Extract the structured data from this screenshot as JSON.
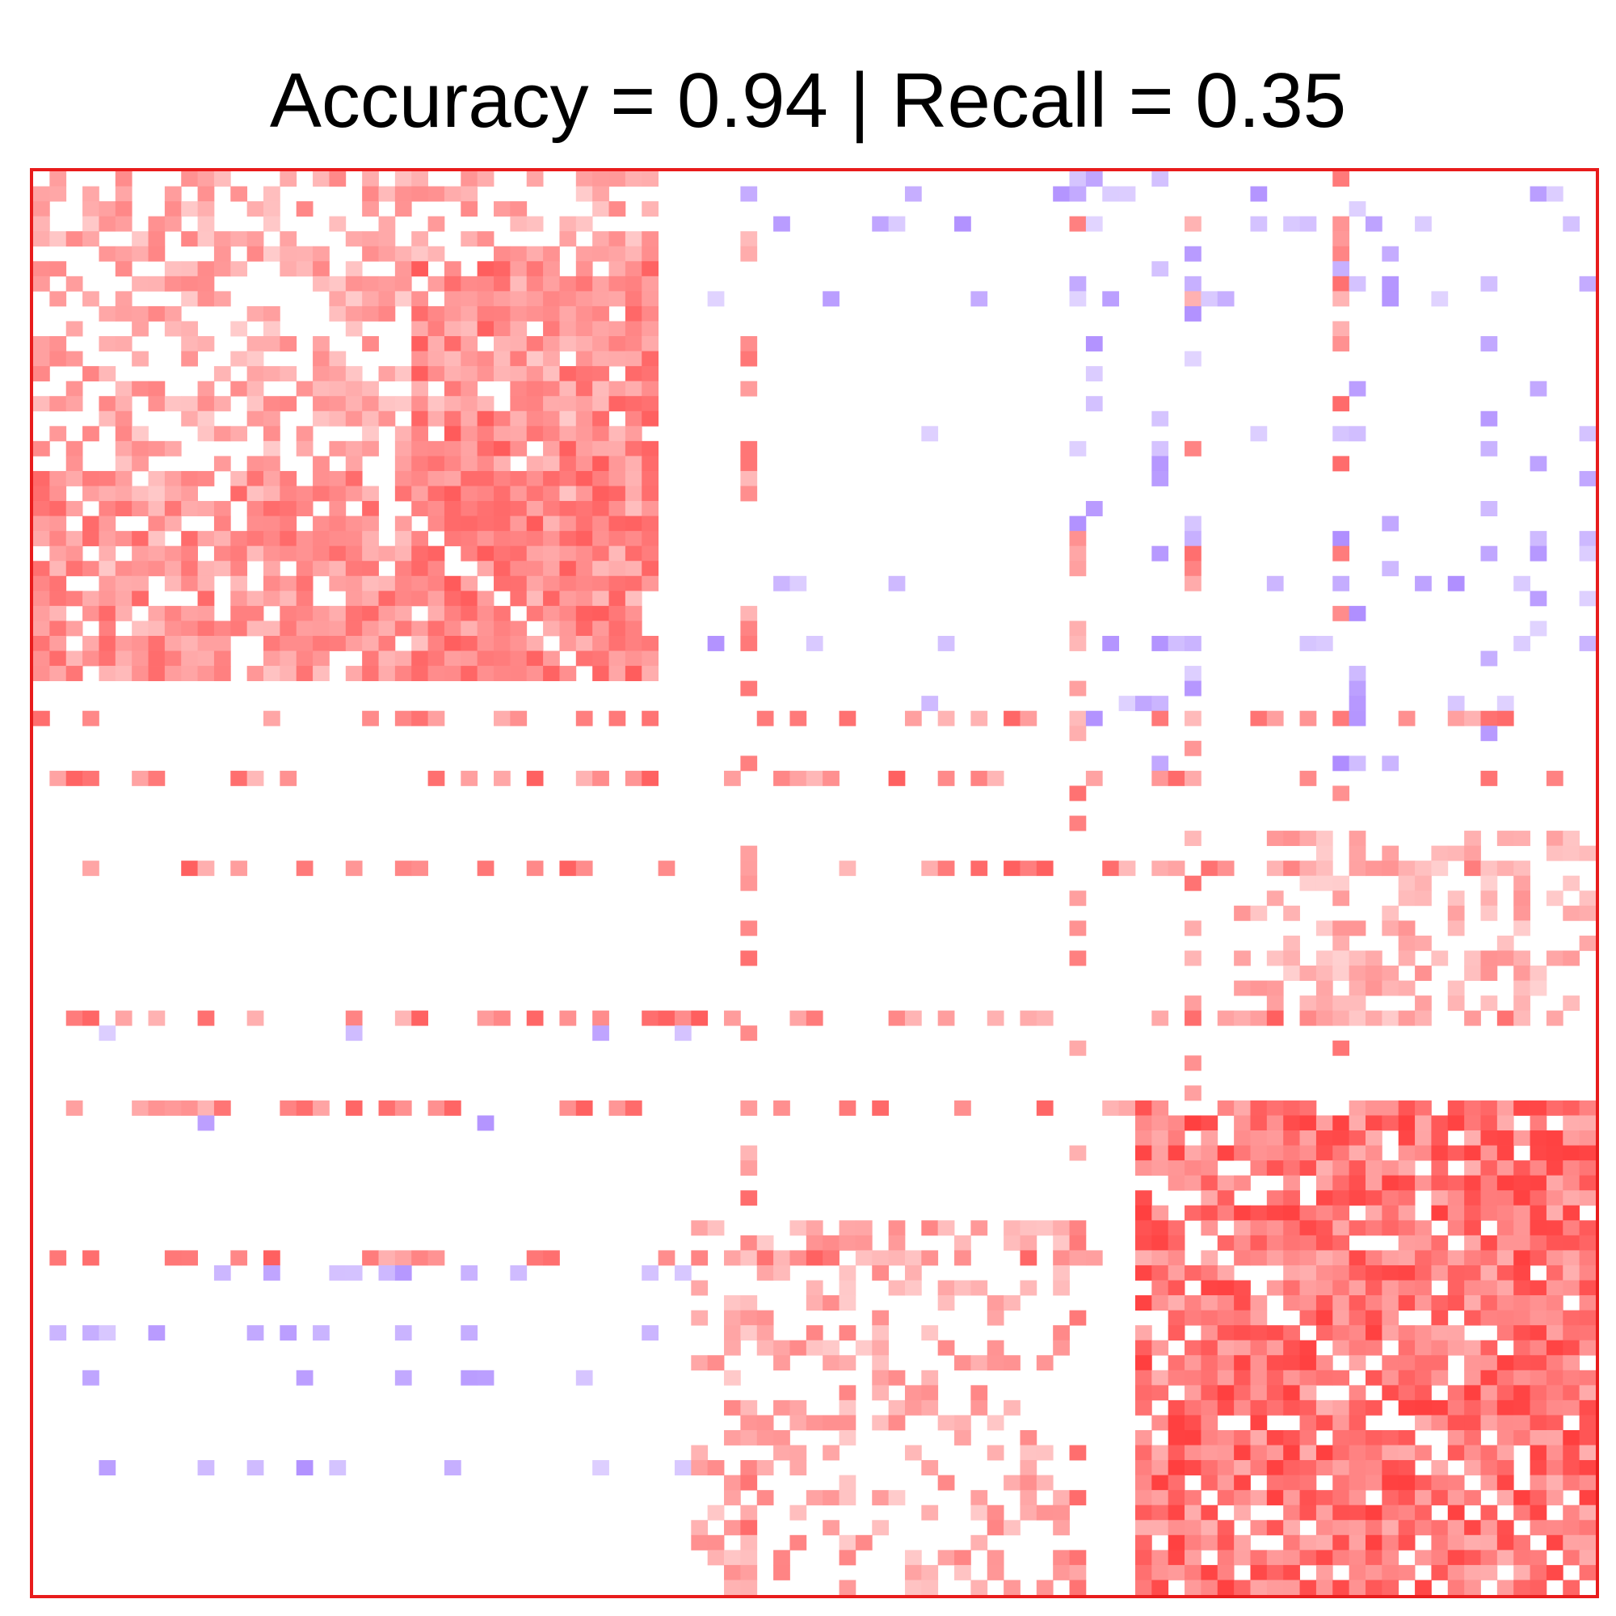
{
  "chart_data": {
    "type": "heatmap",
    "title": "Accuracy = 0.94 | Recall = 0.35",
    "grid": false,
    "legend": "none",
    "n_rows": 95,
    "n_cols": 95,
    "value_range": [
      -1,
      1
    ],
    "colors": {
      "positive": "#ff1a1a",
      "negative": "#8c5cff",
      "zero": "#ffffff",
      "frame": "#e81c1c"
    },
    "blocks": [
      {
        "r0": 0,
        "r1": 34,
        "c0": 0,
        "c1": 38,
        "density": 0.5,
        "value": 0.45
      },
      {
        "r0": 6,
        "r1": 34,
        "c0": 23,
        "c1": 38,
        "density": 0.8,
        "value": 0.6
      },
      {
        "r0": 20,
        "r1": 34,
        "c0": 0,
        "c1": 38,
        "density": 0.75,
        "value": 0.55
      },
      {
        "r0": 62,
        "r1": 95,
        "c0": 67,
        "c1": 95,
        "density": 0.85,
        "value": 0.7
      },
      {
        "r0": 44,
        "r1": 57,
        "c0": 73,
        "c1": 95,
        "density": 0.45,
        "value": 0.4
      },
      {
        "r0": 70,
        "r1": 95,
        "c0": 40,
        "c1": 63,
        "density": 0.35,
        "value": 0.45
      }
    ],
    "sparse_rows": [
      36,
      40,
      46,
      56,
      62,
      72
    ],
    "sparse_cols": [
      43,
      63,
      70,
      79
    ],
    "negative_rows": [
      1,
      3,
      8,
      17,
      27,
      31,
      35,
      47,
      57,
      63,
      73,
      77,
      80,
      86
    ],
    "negative_cols": [
      63,
      64,
      68,
      70,
      79,
      80,
      82,
      88,
      91,
      94
    ]
  }
}
